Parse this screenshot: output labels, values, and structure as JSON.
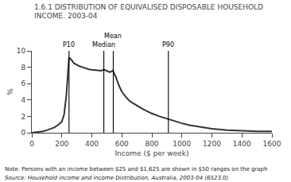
{
  "chart_data": {
    "type": "line",
    "title": "1.6.1 DISTRIBUTION OF EQUIVALISED DISPOSABLE HOUSEHOLD\nINCOME. 2003-04",
    "xlabel": "Income ($ per week)",
    "ylabel": "%",
    "x": [
      0,
      25,
      50,
      75,
      100,
      125,
      150,
      175,
      200,
      215,
      230,
      248,
      265,
      280,
      300,
      320,
      340,
      360,
      380,
      400,
      420,
      440,
      460,
      480,
      500,
      520,
      540,
      560,
      580,
      600,
      625,
      650,
      675,
      700,
      730,
      760,
      800,
      850,
      900,
      950,
      1000,
      1050,
      1100,
      1150,
      1200,
      1300,
      1400,
      1500,
      1600
    ],
    "series": [
      {
        "color": "#333333",
        "values": [
          0.0,
          0.05,
          0.1,
          0.18,
          0.3,
          0.45,
          0.65,
          0.95,
          1.35,
          2.2,
          4.5,
          9.2,
          8.9,
          8.5,
          8.3,
          8.1,
          8.0,
          7.85,
          7.75,
          7.7,
          7.65,
          7.6,
          7.58,
          7.7,
          7.55,
          7.4,
          7.6,
          6.8,
          5.8,
          5.0,
          4.4,
          3.9,
          3.6,
          3.3,
          3.0,
          2.7,
          2.35,
          2.0,
          1.7,
          1.4,
          1.15,
          0.92,
          0.75,
          0.6,
          0.48,
          0.32,
          0.22,
          0.18,
          0.17
        ]
      }
    ],
    "xlim": [
      0,
      1600
    ],
    "ylim": [
      0,
      10
    ],
    "xticks": [
      0,
      200,
      400,
      600,
      800,
      1000,
      1200,
      1400,
      1600
    ],
    "yticks": [
      0,
      2,
      4,
      6,
      8,
      10
    ],
    "grid": false,
    "annotations": [
      {
        "text": "P10",
        "x": 248,
        "color": "#000000"
      },
      {
        "text": "Median",
        "x": 480,
        "color": "#000000"
      },
      {
        "text": "Mean",
        "x": 543,
        "color": "#000000"
      },
      {
        "text": "P90",
        "x": 910,
        "color": "#000000"
      }
    ],
    "note": "Note: Persons with an income between $25 and $1,625 are shown in $50 ranges on the graph",
    "source": "Source: Household income and income Distribution, Australia, 2003-04 (6523.0)"
  }
}
